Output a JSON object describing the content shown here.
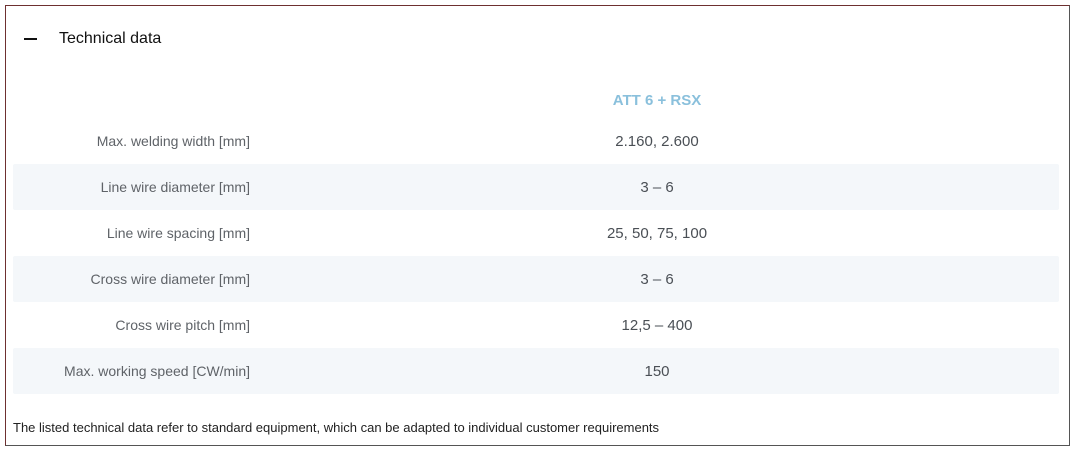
{
  "section": {
    "title": "Technical data",
    "toggle_icon": "minus-icon"
  },
  "table": {
    "column_header": "ATT 6 + RSX",
    "rows": [
      {
        "label": "Max. welding width [mm]",
        "value": "2.160, 2.600"
      },
      {
        "label": "Line wire diameter [mm]",
        "value": "3 – 6"
      },
      {
        "label": "Line wire spacing [mm]",
        "value": "25, 50, 75, 100"
      },
      {
        "label": "Cross wire diameter [mm]",
        "value": "3 – 6"
      },
      {
        "label": "Cross wire pitch [mm]",
        "value": "12,5 – 400"
      },
      {
        "label": "Max. working speed [CW/min]",
        "value": "150"
      }
    ]
  },
  "note": "The listed technical data refer to standard equipment, which can be adapted to individual customer requirements",
  "colors": {
    "accent": "#8ac0dc",
    "stripe": "#f4f7fa"
  }
}
